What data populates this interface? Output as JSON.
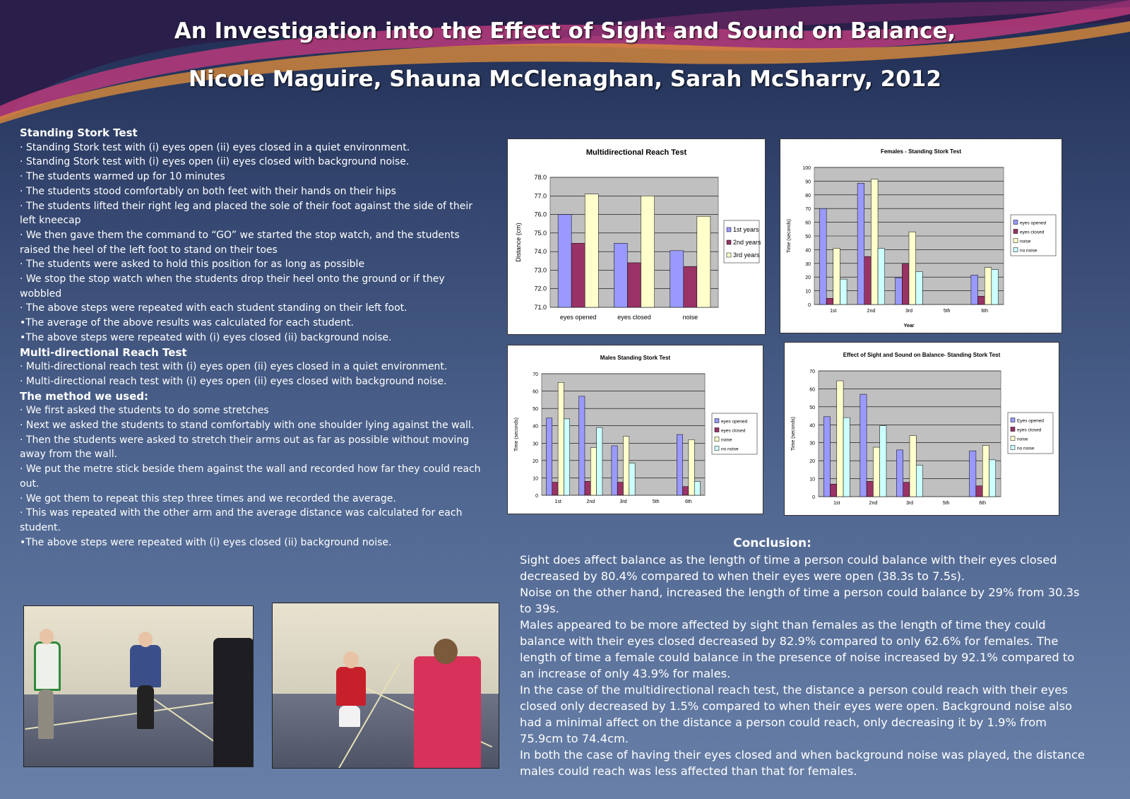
{
  "header": {
    "title": "An Investigation into the Effect of Sight and Sound on Balance,",
    "authors": "Nicole Maguire, Shauna McClenaghan, Sarah McSharry, 2012"
  },
  "method": {
    "sections": [
      {
        "heading": "Standing Stork Test",
        "items": [
          "· Standing Stork test with (i) eyes open (ii) eyes closed in a quiet environment.",
          "· Standing Stork test with (i) eyes open (ii) eyes closed with background noise.",
          "· The students warmed up for 10 minutes",
          "· The students stood comfortably on both feet with their hands on their hips",
          "· The students lifted their right leg and placed the sole of their foot against the side of their left kneecap",
          "· We then gave them the command to “GO” we started the stop watch, and the students raised the heel of the left foot to stand on their toes",
          "· The students were asked to hold this position for as long as possible",
          "· We stop the stop watch when the students drop their heel onto the ground or if they wobbled",
          "· The above steps were repeated with each student standing on their left foot.",
          "•The average of the above results was calculated for each student.",
          "•The above steps were repeated with (i) eyes closed (ii) background noise."
        ]
      },
      {
        "heading": "Multi-directional Reach Test",
        "items": [
          "· Multi-directional reach test with (i) eyes open (ii) eyes closed in a quiet environment.",
          "· Multi-directional reach test with (i) eyes open (ii) eyes closed with background noise."
        ]
      },
      {
        "heading": "The method we used:",
        "items": [
          "· We first asked the students to do some stretches",
          "· Next we asked the students to stand comfortably with one shoulder lying against the wall.",
          "· Then the students were asked to stretch their arms out as far as possible without moving away from the wall.",
          "· We put the metre stick beside them against the wall and recorded how far they could reach out.",
          "· We got them to repeat this step three times and we recorded the average.",
          "· This was repeated with the other arm and the average distance was calculated for each student.",
          "•The above steps were repeated with (i) eyes closed (ii) background noise."
        ]
      }
    ]
  },
  "conclusion": {
    "heading": "Conclusion:",
    "paragraphs": [
      "Sight does affect balance as the length of time a person could balance with their eyes closed decreased by 80.4% compared to when their eyes were open (38.3s to 7.5s).",
      "Noise on the other hand, increased the length of time a person could balance by 29% from 30.3s to 39s.",
      "Males appeared to be more affected by sight than females as the length of time they could balance with their eyes closed decreased by 82.9% compared to only 62.6% for females.  The length of time a female could balance in the presence of noise increased by 92.1% compared to an increase of only 43.9% for males.",
      "In the case of the multidirectional reach test, the distance a person could reach with their eyes closed only decreased by 1.5% compared to when their eyes were open. Background noise also had a minimal affect on the distance a person could reach, only decreasing it by 1.9% from 75.9cm to 74.4cm.",
      "In both the case of having their eyes closed and when background noise was played, the distance males could reach was less affected than that for females."
    ]
  },
  "colors": {
    "series": [
      "#9999ff",
      "#993366",
      "#ffffcc",
      "#ccffff"
    ],
    "plot_bg": "#c0c0c0"
  },
  "chart_data": [
    {
      "type": "bar",
      "title": "Multidirectional Reach Test",
      "ylabel": "Distance (cm)",
      "xlabel": "",
      "ylim": [
        71,
        78
      ],
      "ystep": 1,
      "ydecimals": 1,
      "grid": true,
      "legend": "right",
      "categories": [
        "eyes opened",
        "eyes closed",
        "noise"
      ],
      "series": [
        {
          "name": "1st years",
          "values": [
            76.0,
            74.45,
            74.05
          ]
        },
        {
          "name": "2nd years",
          "values": [
            74.45,
            73.4,
            73.2
          ]
        },
        {
          "name": "3rd years",
          "values": [
            77.1,
            77.0,
            75.9
          ]
        }
      ]
    },
    {
      "type": "bar",
      "title": "Females - Standing Stork Test",
      "ylabel": "Time (seconds)",
      "xlabel": "Year",
      "ylim": [
        0,
        100
      ],
      "ystep": 10,
      "ydecimals": 0,
      "grid": true,
      "legend": "right",
      "categories": [
        "1st",
        "2nd",
        "3rd",
        "5th",
        "6th"
      ],
      "series": [
        {
          "name": "eyes opened",
          "values": [
            70,
            88.5,
            19.5,
            null,
            21.5
          ]
        },
        {
          "name": "eyes closed",
          "values": [
            4.5,
            35,
            29.5,
            null,
            6
          ]
        },
        {
          "name": "noise",
          "values": [
            41,
            91.5,
            53,
            null,
            27
          ]
        },
        {
          "name": "no noise",
          "values": [
            18.5,
            41,
            24,
            null,
            25.5
          ]
        }
      ]
    },
    {
      "type": "bar",
      "title": "Males Standing Stork Test",
      "ylabel": "Time (seconds)",
      "xlabel": "",
      "ylim": [
        0,
        70
      ],
      "ystep": 10,
      "ydecimals": 0,
      "grid": true,
      "legend": "right",
      "categories": [
        "1st",
        "2nd",
        "3rd",
        "5th",
        "6th"
      ],
      "series": [
        {
          "name": "eyes opened",
          "values": [
            44.5,
            57,
            28.5,
            null,
            35
          ]
        },
        {
          "name": "eyes closed",
          "values": [
            7.5,
            8,
            7.5,
            null,
            5
          ]
        },
        {
          "name": "noise",
          "values": [
            65,
            27.5,
            34,
            null,
            32
          ]
        },
        {
          "name": "no noise",
          "values": [
            44,
            39,
            18.5,
            null,
            8
          ]
        }
      ]
    },
    {
      "type": "bar",
      "title": "Effect of Sight and Sound on Balance- Standing Stork Test",
      "ylabel": "Time (seconds)",
      "xlabel": "",
      "ylim": [
        0,
        70
      ],
      "ystep": 10,
      "ydecimals": 0,
      "grid": true,
      "legend": "right",
      "categories": [
        "1st",
        "2nd",
        "3rd",
        "5th",
        "6th"
      ],
      "series": [
        {
          "name": "Eyes opened",
          "values": [
            44.5,
            57,
            26,
            null,
            25.5
          ]
        },
        {
          "name": "eyes closed",
          "values": [
            7,
            8.5,
            8,
            null,
            6
          ]
        },
        {
          "name": "noise",
          "values": [
            64.5,
            27.5,
            34,
            null,
            28.5
          ]
        },
        {
          "name": "no noise",
          "values": [
            44,
            39.5,
            17.5,
            null,
            20.5
          ]
        }
      ]
    }
  ]
}
